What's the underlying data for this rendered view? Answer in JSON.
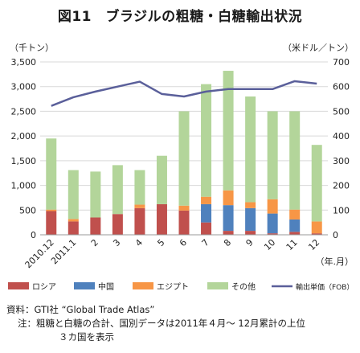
{
  "title": "図11　ブラジルの粗糖・白糖輸出状況",
  "chart_data": {
    "type": "bar",
    "stacked": true,
    "categories": [
      "2010.12",
      "2011.1",
      "2",
      "3",
      "4",
      "5",
      "6",
      "7",
      "8",
      "9",
      "10",
      "11",
      "12"
    ],
    "left_axis_unit": "（千トン）",
    "right_axis_unit": "（米ドル／トン）",
    "x_axis_unit": "（年.月）",
    "ylim_left": [
      0,
      3500
    ],
    "yticks_left": [
      "0",
      "500",
      "1,000",
      "1,500",
      "2,000",
      "2,500",
      "3,000",
      "3,500"
    ],
    "ylim_right": [
      0,
      700
    ],
    "yticks_right": [
      "0",
      "100",
      "200",
      "300",
      "400",
      "500",
      "600",
      "700"
    ],
    "series": [
      {
        "name": "ロシア",
        "color": "#c0504d",
        "values": [
          480,
          270,
          350,
          420,
          540,
          620,
          490,
          250,
          80,
          80,
          30,
          60,
          30
        ]
      },
      {
        "name": "中国",
        "color": "#4f81bd",
        "values": [
          0,
          0,
          0,
          0,
          0,
          0,
          0,
          370,
          520,
          460,
          400,
          250,
          0
        ]
      },
      {
        "name": "エジプト",
        "color": "#f79646",
        "values": [
          30,
          50,
          0,
          0,
          70,
          0,
          100,
          150,
          300,
          120,
          290,
          200,
          240
        ]
      },
      {
        "name": "その他",
        "color": "#b3d59a",
        "values": [
          1440,
          990,
          930,
          990,
          700,
          980,
          1910,
          2280,
          2420,
          2140,
          1780,
          1990,
          1550
        ]
      }
    ],
    "line": {
      "name": "輸出単価（FOB）",
      "color": "#5a5f9a",
      "values": [
        522,
        557,
        580,
        600,
        620,
        570,
        560,
        580,
        590,
        590,
        590,
        622,
        612
      ]
    }
  },
  "notes": {
    "source": "資料：GTI社 “Global Trade Atlas”",
    "note1": "注：粗糖と白糖の合計、国別データは2011年４月～ 12月累計の上位",
    "note2": "３カ国を表示"
  }
}
